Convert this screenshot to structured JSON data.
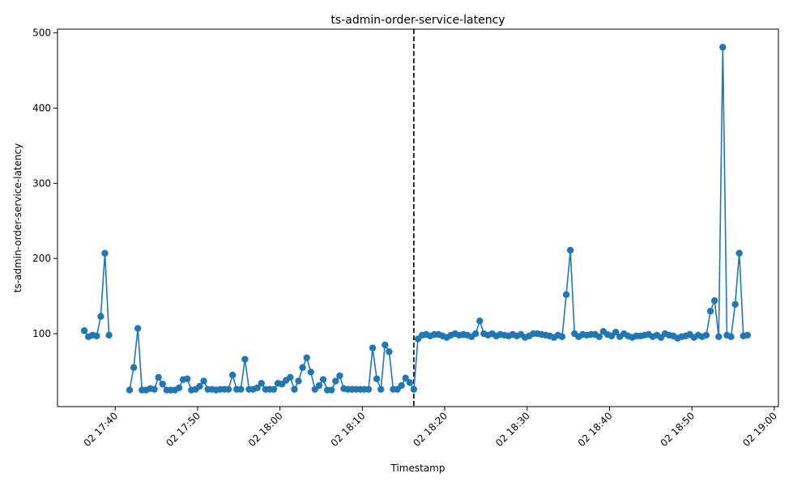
{
  "chart_data": {
    "type": "line",
    "title": "ts-admin-order-service-latency",
    "xlabel": "Timestamp",
    "ylabel": "ts-admin-order-service-latency",
    "x_ticks": [
      "02 17:40",
      "02 17:50",
      "02 18:00",
      "02 18:10",
      "02 18:20",
      "02 18:30",
      "02 18:40",
      "02 18:50",
      "02 19:00"
    ],
    "y_ticks": [
      "100",
      "200",
      "300",
      "400",
      "500"
    ],
    "xlim": [
      "02 17:33:00",
      "02 19:00:30"
    ],
    "ylim": [
      3,
      505
    ],
    "grid": false,
    "marker": "circle",
    "reference_line": {
      "x": "02 18:16:15",
      "style": "dashed",
      "color": "#000000"
    },
    "series": [
      {
        "color": "#1f77b4",
        "segments": [
          [
            [
              "02 17:36:15",
              104
            ],
            [
              "02 17:36:45",
              96
            ],
            [
              "02 17:37:15",
              98
            ],
            [
              "02 17:37:45",
              97
            ],
            [
              "02 17:38:15",
              123
            ],
            [
              "02 17:38:45",
              207
            ],
            [
              "02 17:39:15",
              98
            ]
          ],
          [
            [
              "02 17:41:45",
              25
            ],
            [
              "02 17:42:15",
              55
            ],
            [
              "02 17:42:45",
              107
            ],
            [
              "02 17:43:15",
              25
            ],
            [
              "02 17:43:45",
              25
            ],
            [
              "02 17:44:15",
              27
            ],
            [
              "02 17:44:45",
              26
            ],
            [
              "02 17:45:15",
              42
            ],
            [
              "02 17:45:45",
              33
            ],
            [
              "02 17:46:15",
              25
            ],
            [
              "02 17:46:45",
              25
            ],
            [
              "02 17:47:15",
              25
            ],
            [
              "02 17:47:45",
              28
            ],
            [
              "02 17:48:15",
              39
            ],
            [
              "02 17:48:45",
              40
            ],
            [
              "02 17:49:15",
              25
            ],
            [
              "02 17:49:45",
              26
            ],
            [
              "02 17:50:15",
              30
            ],
            [
              "02 17:50:45",
              37
            ],
            [
              "02 17:51:15",
              26
            ],
            [
              "02 17:51:45",
              26
            ],
            [
              "02 17:52:15",
              25
            ],
            [
              "02 17:52:45",
              26
            ],
            [
              "02 17:53:15",
              26
            ],
            [
              "02 17:53:45",
              26
            ],
            [
              "02 17:54:15",
              45
            ],
            [
              "02 17:54:45",
              26
            ],
            [
              "02 17:55:15",
              26
            ],
            [
              "02 17:55:45",
              66
            ],
            [
              "02 17:56:15",
              26
            ],
            [
              "02 17:56:45",
              26
            ],
            [
              "02 17:57:15",
              28
            ],
            [
              "02 17:57:45",
              34
            ],
            [
              "02 17:58:15",
              26
            ],
            [
              "02 17:58:45",
              26
            ],
            [
              "02 17:59:15",
              26
            ],
            [
              "02 17:59:45",
              34
            ],
            [
              "02 18:00:15",
              33
            ],
            [
              "02 18:00:45",
              38
            ],
            [
              "02 18:01:15",
              42
            ],
            [
              "02 18:01:45",
              26
            ],
            [
              "02 18:02:15",
              37
            ],
            [
              "02 18:02:45",
              55
            ],
            [
              "02 18:03:15",
              68
            ],
            [
              "02 18:03:45",
              49
            ],
            [
              "02 18:04:15",
              26
            ],
            [
              "02 18:04:45",
              31
            ],
            [
              "02 18:05:15",
              39
            ],
            [
              "02 18:05:45",
              25
            ],
            [
              "02 18:06:15",
              25
            ],
            [
              "02 18:06:45",
              37
            ],
            [
              "02 18:07:15",
              44
            ],
            [
              "02 18:07:45",
              27
            ],
            [
              "02 18:08:15",
              26
            ],
            [
              "02 18:08:45",
              26
            ],
            [
              "02 18:09:15",
              26
            ],
            [
              "02 18:09:45",
              26
            ],
            [
              "02 18:10:15",
              26
            ],
            [
              "02 18:10:45",
              26
            ],
            [
              "02 18:11:15",
              81
            ],
            [
              "02 18:11:45",
              40
            ],
            [
              "02 18:12:15",
              26
            ],
            [
              "02 18:12:45",
              85
            ],
            [
              "02 18:13:15",
              76
            ],
            [
              "02 18:13:45",
              26
            ],
            [
              "02 18:14:15",
              26
            ],
            [
              "02 18:14:45",
              31
            ],
            [
              "02 18:15:15",
              41
            ],
            [
              "02 18:15:45",
              35
            ],
            [
              "02 18:16:15",
              26
            ],
            [
              "02 18:16:45",
              93
            ],
            [
              "02 18:17:15",
              98
            ],
            [
              "02 18:17:45",
              99
            ],
            [
              "02 18:18:15",
              97
            ],
            [
              "02 18:18:45",
              99
            ],
            [
              "02 18:19:15",
              99
            ],
            [
              "02 18:19:45",
              97
            ],
            [
              "02 18:20:15",
              95
            ],
            [
              "02 18:20:45",
              98
            ],
            [
              "02 18:21:15",
              100
            ],
            [
              "02 18:21:45",
              98
            ],
            [
              "02 18:22:15",
              99
            ],
            [
              "02 18:22:45",
              98
            ],
            [
              "02 18:23:15",
              96
            ],
            [
              "02 18:23:45",
              100
            ],
            [
              "02 18:24:15",
              117
            ],
            [
              "02 18:24:45",
              100
            ],
            [
              "02 18:25:15",
              98
            ],
            [
              "02 18:25:45",
              100
            ],
            [
              "02 18:26:15",
              97
            ],
            [
              "02 18:26:45",
              99
            ],
            [
              "02 18:27:15",
              98
            ],
            [
              "02 18:27:45",
              97
            ],
            [
              "02 18:28:15",
              99
            ],
            [
              "02 18:28:45",
              97
            ],
            [
              "02 18:29:15",
              99
            ],
            [
              "02 18:29:45",
              95
            ],
            [
              "02 18:30:15",
              97
            ],
            [
              "02 18:30:45",
              100
            ],
            [
              "02 18:31:15",
              100
            ],
            [
              "02 18:31:45",
              99
            ],
            [
              "02 18:32:15",
              98
            ],
            [
              "02 18:32:45",
              97
            ],
            [
              "02 18:33:15",
              95
            ],
            [
              "02 18:33:45",
              98
            ],
            [
              "02 18:34:15",
              96
            ],
            [
              "02 18:34:45",
              152
            ],
            [
              "02 18:35:15",
              211
            ],
            [
              "02 18:35:45",
              100
            ],
            [
              "02 18:36:15",
              96
            ],
            [
              "02 18:36:45",
              99
            ],
            [
              "02 18:37:15",
              98
            ],
            [
              "02 18:37:45",
              99
            ],
            [
              "02 18:38:15",
              99
            ],
            [
              "02 18:38:45",
              96
            ],
            [
              "02 18:39:15",
              103
            ],
            [
              "02 18:39:45",
              99
            ],
            [
              "02 18:40:15",
              97
            ],
            [
              "02 18:40:45",
              102
            ],
            [
              "02 18:41:15",
              96
            ],
            [
              "02 18:41:45",
              100
            ],
            [
              "02 18:42:15",
              97
            ],
            [
              "02 18:42:45",
              95
            ],
            [
              "02 18:43:15",
              97
            ],
            [
              "02 18:43:45",
              97
            ],
            [
              "02 18:44:15",
              98
            ],
            [
              "02 18:44:45",
              99
            ],
            [
              "02 18:45:15",
              96
            ],
            [
              "02 18:45:45",
              98
            ],
            [
              "02 18:46:15",
              95
            ],
            [
              "02 18:46:45",
              100
            ],
            [
              "02 18:47:15",
              98
            ],
            [
              "02 18:47:45",
              97
            ],
            [
              "02 18:48:15",
              94
            ],
            [
              "02 18:48:45",
              96
            ],
            [
              "02 18:49:15",
              97
            ],
            [
              "02 18:49:45",
              99
            ],
            [
              "02 18:50:15",
              95
            ],
            [
              "02 18:50:45",
              98
            ],
            [
              "02 18:51:15",
              96
            ],
            [
              "02 18:51:45",
              98
            ],
            [
              "02 18:52:15",
              130
            ],
            [
              "02 18:52:45",
              144
            ],
            [
              "02 18:53:15",
              96
            ],
            [
              "02 18:53:45",
              481
            ],
            [
              "02 18:54:15",
              98
            ],
            [
              "02 18:54:45",
              96
            ],
            [
              "02 18:55:15",
              139
            ],
            [
              "02 18:55:45",
              207
            ],
            [
              "02 18:56:15",
              97
            ],
            [
              "02 18:56:45",
              98
            ]
          ]
        ]
      }
    ]
  }
}
